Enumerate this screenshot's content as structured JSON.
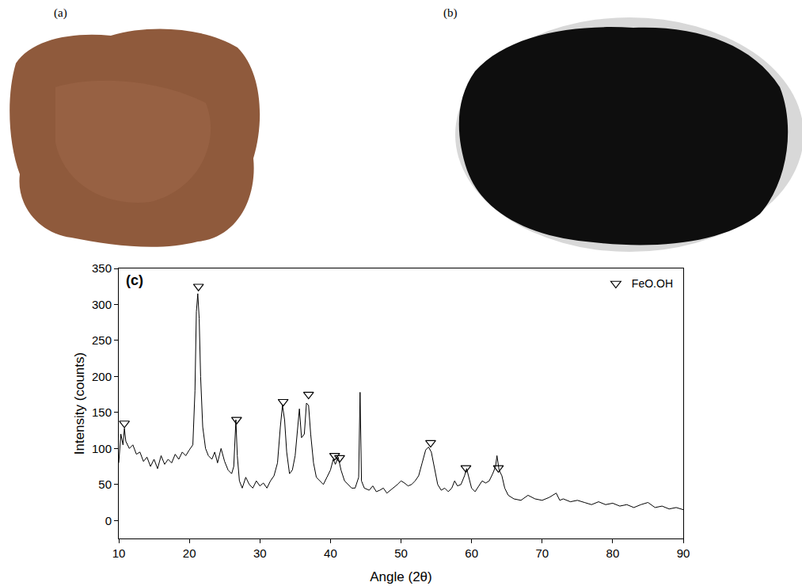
{
  "photos": [
    {
      "label": "(a)"
    },
    {
      "label": "(b)"
    }
  ],
  "chart_data": {
    "type": "line",
    "annotations": [
      "(c)"
    ],
    "x_label": "Angle (2θ)",
    "y_label": "Intensity (counts)",
    "xlim": [
      10,
      90
    ],
    "xticks": [
      10,
      20,
      30,
      40,
      50,
      60,
      70,
      80,
      90
    ],
    "ylim": [
      -25,
      350
    ],
    "yticks": [
      0,
      50,
      100,
      150,
      200,
      250,
      300,
      350
    ],
    "grid": false,
    "legend": "upper right",
    "series": [
      {
        "type": "line",
        "color": "#000000",
        "line_style": "solid",
        "x": [
          10,
          10.3,
          10.6,
          10.8,
          11,
          11.5,
          12,
          12.5,
          13,
          13.5,
          14,
          14.5,
          15,
          15.5,
          16,
          16.5,
          17,
          17.5,
          18,
          18.5,
          19,
          19.5,
          20,
          20.5,
          20.8,
          21,
          21.2,
          21.4,
          21.6,
          21.9,
          22.3,
          22.7,
          23.2,
          23.6,
          24,
          24.5,
          25,
          25.5,
          26,
          26.3,
          26.6,
          26.8,
          27.1,
          27.5,
          28,
          28.5,
          29,
          29.5,
          30,
          30.5,
          31,
          31.5,
          32,
          32.5,
          32.9,
          33.2,
          33.5,
          33.8,
          34.2,
          34.6,
          35,
          35.4,
          35.6,
          35.9,
          36.3,
          36.6,
          36.9,
          37.2,
          37.6,
          38,
          38.5,
          39,
          39.5,
          40,
          40.4,
          40.7,
          41.1,
          41.5,
          42,
          42.5,
          43,
          43.5,
          44,
          44.2,
          44.4,
          44.8,
          45.5,
          46,
          46.5,
          47,
          47.5,
          48,
          48.5,
          49,
          49.5,
          50,
          50.5,
          51,
          51.5,
          52,
          52.5,
          53,
          53.5,
          53.9,
          54.3,
          54.7,
          55.2,
          55.7,
          56.2,
          56.7,
          57.2,
          57.6,
          58,
          58.5,
          59,
          59.3,
          59.6,
          60,
          60.5,
          61,
          61.5,
          62,
          62.5,
          63,
          63.4,
          63.6,
          63.9,
          64.3,
          64.7,
          65.2,
          66,
          67,
          68,
          69,
          70,
          71,
          72,
          72.5,
          73,
          74,
          75,
          76,
          77,
          78,
          79,
          80,
          81,
          82,
          83,
          84,
          85,
          86,
          87,
          88,
          89,
          90
        ],
        "values": [
          80,
          120,
          105,
          128,
          110,
          100,
          105,
          92,
          95,
          82,
          88,
          75,
          85,
          72,
          90,
          78,
          85,
          80,
          92,
          85,
          95,
          90,
          98,
          105,
          180,
          290,
          315,
          280,
          200,
          130,
          100,
          90,
          85,
          95,
          80,
          100,
          82,
          70,
          65,
          75,
          140,
          90,
          55,
          45,
          60,
          50,
          45,
          55,
          48,
          52,
          45,
          55,
          62,
          80,
          130,
          160,
          140,
          95,
          65,
          70,
          90,
          140,
          155,
          115,
          120,
          163,
          160,
          120,
          80,
          60,
          55,
          50,
          60,
          70,
          85,
          78,
          88,
          70,
          55,
          50,
          45,
          45,
          60,
          178,
          55,
          45,
          42,
          48,
          40,
          42,
          45,
          38,
          42,
          45,
          50,
          55,
          52,
          48,
          50,
          55,
          62,
          80,
          98,
          102,
          95,
          75,
          50,
          42,
          45,
          40,
          45,
          55,
          48,
          50,
          62,
          72,
          60,
          45,
          40,
          48,
          55,
          52,
          55,
          65,
          75,
          90,
          70,
          62,
          45,
          35,
          30,
          28,
          35,
          30,
          28,
          32,
          38,
          28,
          30,
          26,
          28,
          25,
          22,
          26,
          22,
          24,
          20,
          22,
          18,
          22,
          25,
          18,
          20,
          16,
          18,
          15
        ]
      },
      {
        "type": "scatter",
        "name": "FeO.OH",
        "color": "#000000",
        "marker": "triangle-down-open",
        "x": [
          10.8,
          21.3,
          26.7,
          33.3,
          36.9,
          40.6,
          41.3,
          54.2,
          59.2,
          63.8
        ],
        "values": [
          135,
          325,
          140,
          165,
          175,
          90,
          87,
          108,
          73,
          73
        ]
      }
    ]
  }
}
